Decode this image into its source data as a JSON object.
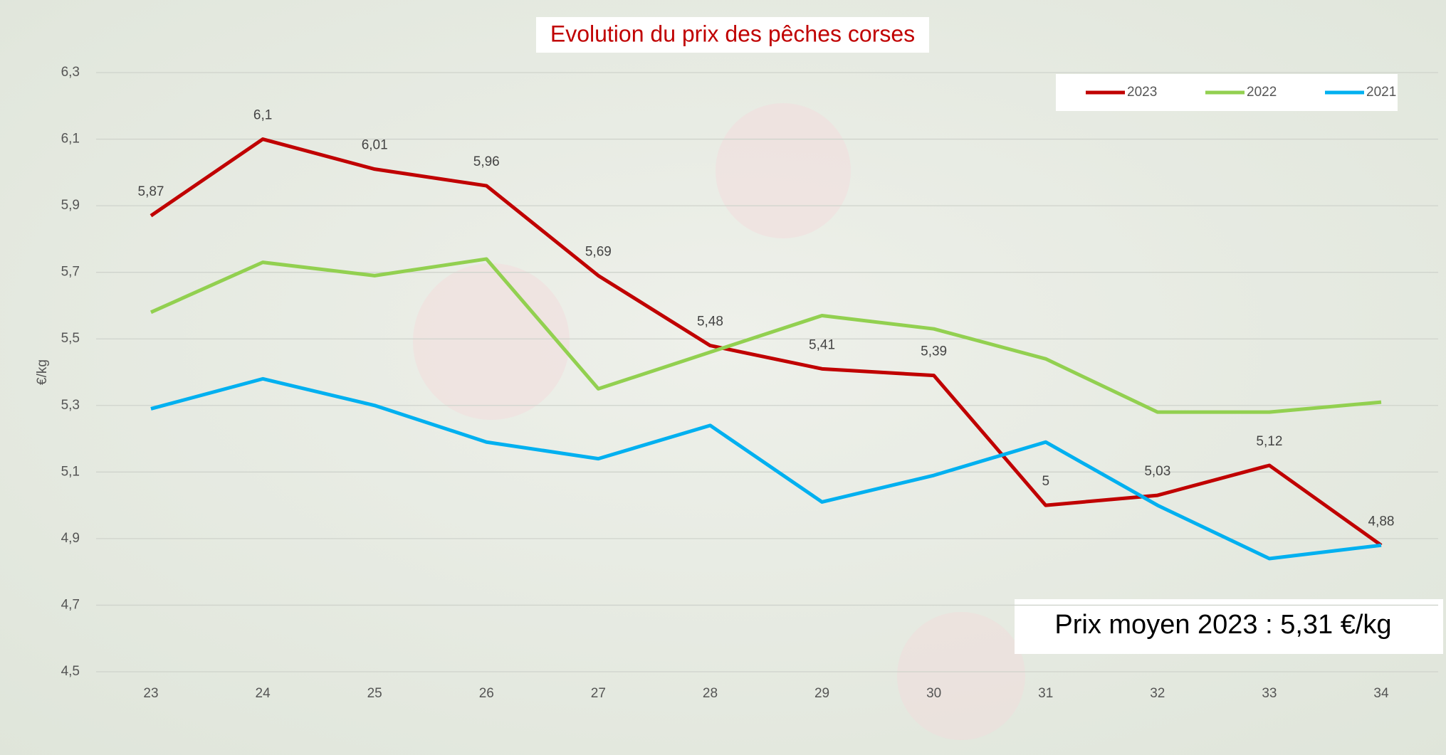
{
  "chart_data": {
    "type": "line",
    "title": "Evolution du prix des pêches corses",
    "y_label": "€/kg",
    "annotation": "Prix moyen 2023 : 5,31 €/kg",
    "categories": [
      "23",
      "24",
      "25",
      "26",
      "27",
      "28",
      "29",
      "30",
      "31",
      "32",
      "33",
      "34"
    ],
    "series": [
      {
        "name": "2023",
        "color": "#c00000",
        "values": [
          5.87,
          6.1,
          6.01,
          5.96,
          5.69,
          5.48,
          5.41,
          5.39,
          5,
          5.03,
          5.12,
          4.88
        ],
        "value_labels": [
          "5,87",
          "6,1",
          "6,01",
          "5,96",
          "5,69",
          "5,48",
          "5,41",
          "5,39",
          "5",
          "5,03",
          "5,12",
          "4,88"
        ]
      },
      {
        "name": "2022",
        "color": "#92d050",
        "values": [
          5.58,
          5.73,
          5.69,
          5.74,
          5.35,
          5.46,
          5.57,
          5.53,
          5.44,
          5.28,
          5.28,
          5.31
        ]
      },
      {
        "name": "2021",
        "color": "#00b0f0",
        "values": [
          5.29,
          5.38,
          5.3,
          5.19,
          5.14,
          5.24,
          5.01,
          5.09,
          5.19,
          5,
          4.84,
          4.88
        ]
      }
    ],
    "ylim": [
      4.5,
      6.3
    ],
    "yticks": [
      {
        "value": 4.5,
        "label": "4,5"
      },
      {
        "value": 4.7,
        "label": "4,7"
      },
      {
        "value": 4.9,
        "label": "4,9"
      },
      {
        "value": 5.1,
        "label": "5,1"
      },
      {
        "value": 5.3,
        "label": "5,3"
      },
      {
        "value": 5.5,
        "label": "5,5"
      },
      {
        "value": 5.7,
        "label": "5,7"
      },
      {
        "value": 5.9,
        "label": "5,9"
      },
      {
        "value": 6.1,
        "label": "6,1"
      },
      {
        "value": 6.3,
        "label": "6,3"
      }
    ],
    "grid": true,
    "legend": "top-right"
  }
}
